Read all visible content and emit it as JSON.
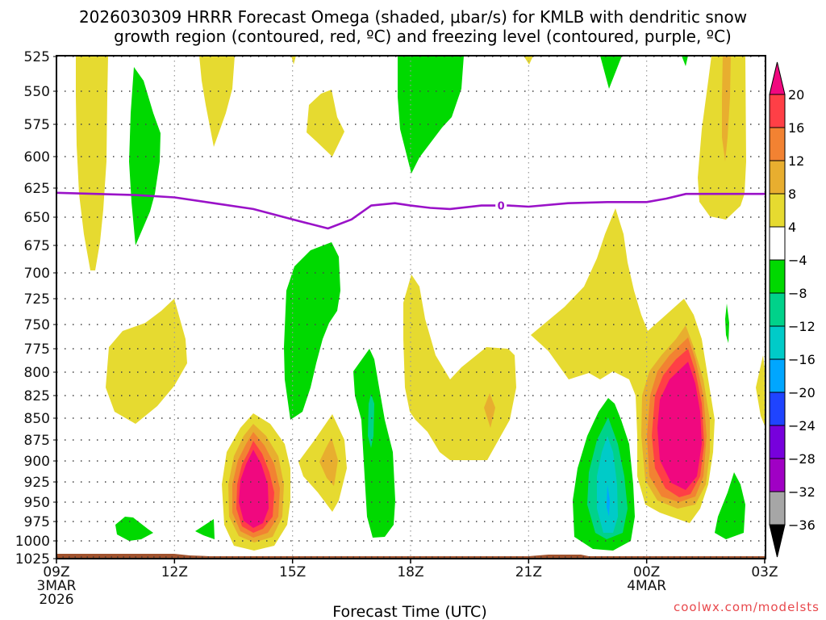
{
  "title": {
    "line1": "2026030309 HRRR Forecast Omega (shaded, μbar/s) for KMLB with dendritic snow",
    "line2": "growth region (contoured, red, ºC) and freezing level (contoured, purple, ºC)"
  },
  "credit": "coolwx.com/models",
  "credit_suffix": "ts",
  "chart_data": {
    "type": "heatmap",
    "title": "2026030309 HRRR Forecast Omega (shaded, μbar/s) for KMLB with dendritic snow growth region (contoured, red, ºC) and freezing level (contoured, purple, ºC)",
    "xlabel": "Forecast Time (UTC)",
    "ylabel": "",
    "x_unit": "hours since 09Z 3MAR2026",
    "xlim": [
      0,
      18
    ],
    "ylim": [
      525,
      1025
    ],
    "y_inverted": true,
    "grid": true,
    "x_ticks": [
      {
        "hour": 0,
        "label": "09Z",
        "sub1": "3MAR",
        "sub2": "2026"
      },
      {
        "hour": 3,
        "label": "12Z",
        "sub1": "",
        "sub2": ""
      },
      {
        "hour": 6,
        "label": "15Z",
        "sub1": "",
        "sub2": ""
      },
      {
        "hour": 9,
        "label": "18Z",
        "sub1": "",
        "sub2": ""
      },
      {
        "hour": 12,
        "label": "21Z",
        "sub1": "",
        "sub2": ""
      },
      {
        "hour": 15,
        "label": "00Z",
        "sub1": "4MAR",
        "sub2": ""
      },
      {
        "hour": 18,
        "label": "03Z",
        "sub1": "",
        "sub2": ""
      }
    ],
    "y_ticks": [
      "525",
      "550",
      "575",
      "600",
      "625",
      "650",
      "675",
      "700",
      "725",
      "750",
      "775",
      "800",
      "825",
      "850",
      "875",
      "900",
      "925",
      "950",
      "975",
      "1000",
      "1025"
    ],
    "colorbar": {
      "unit": "μbar/s",
      "bins": [
        {
          "label": "20",
          "color": "#ff3f46"
        },
        {
          "label": "16",
          "color": "#f28232"
        },
        {
          "label": "12",
          "color": "#e8ae2f"
        },
        {
          "label": "8",
          "color": "#e6da30"
        },
        {
          "label": "4",
          "color": "#ffffff"
        },
        {
          "label": "-4",
          "color": "#00d900"
        },
        {
          "label": "-8",
          "color": "#00d28a"
        },
        {
          "label": "-12",
          "color": "#00cbc8"
        },
        {
          "label": "-16",
          "color": "#00a6ff"
        },
        {
          "label": "-20",
          "color": "#1f44ff"
        },
        {
          "label": "-24",
          "color": "#7700dc"
        },
        {
          "label": "-28",
          "color": "#a000c4"
        },
        {
          "label": "-32",
          "color": "#a6a6a6"
        },
        {
          "label": "-36",
          "color": ""
        }
      ],
      "over_color": "#f0087f",
      "under_color": "#000000"
    },
    "levels": {
      "pos4": "#e6da30",
      "pos8": "#e8ae2f",
      "pos12": "#f28232",
      "pos16": "#ff3f46",
      "pos20": "#f0087f",
      "neg4": "#00d900",
      "neg8": "#00d28a",
      "neg12": "#00cbc8",
      "neg16": "#00a6ff"
    },
    "freezing_level": {
      "label": "0",
      "color": "#9a12c8",
      "points": [
        [
          0,
          629
        ],
        [
          1,
          630
        ],
        [
          2,
          631
        ],
        [
          3,
          633
        ],
        [
          4,
          638
        ],
        [
          5,
          643
        ],
        [
          6,
          652
        ],
        [
          6.9,
          660
        ],
        [
          7.5,
          652
        ],
        [
          8,
          640
        ],
        [
          8.6,
          638
        ],
        [
          9,
          640
        ],
        [
          9.5,
          642
        ],
        [
          10,
          643
        ],
        [
          10.8,
          640
        ],
        [
          11.5,
          640
        ],
        [
          12,
          641
        ],
        [
          13,
          638
        ],
        [
          14,
          637
        ],
        [
          15,
          637
        ],
        [
          15.5,
          634
        ],
        [
          16,
          630
        ],
        [
          17,
          630
        ],
        [
          18,
          630
        ]
      ]
    },
    "ground": {
      "color": "#a0522d",
      "surface_pressure_approx": 1020
    },
    "features": [
      {
        "type": "ascent",
        "max_ubar_s": ">20",
        "center_hour": 5.0,
        "center_pressure": 930
      },
      {
        "type": "ascent",
        "max_ubar_s": ">20",
        "center_hour": 16.1,
        "center_pressure": 855
      },
      {
        "type": "descent",
        "min_ubar_s": "<-16",
        "center_hour": 13.8,
        "center_pressure": 945
      }
    ]
  }
}
